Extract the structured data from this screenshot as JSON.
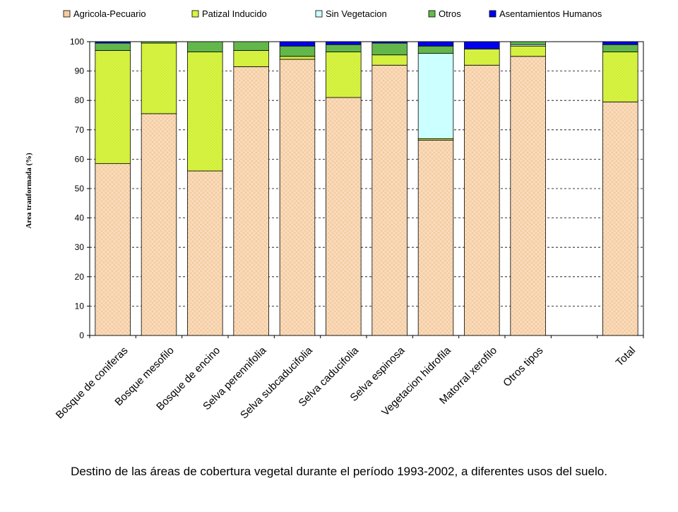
{
  "chart_data": {
    "type": "bar",
    "stacked": true,
    "title": "",
    "xlabel": "",
    "ylabel": "Area tranformada (%)",
    "ylim": [
      0,
      100
    ],
    "yticks": [
      0,
      10,
      20,
      30,
      40,
      50,
      60,
      70,
      80,
      90,
      100
    ],
    "grid": "horizontal dashed",
    "legend_position": "top",
    "categories": [
      "Bosque de coniferas",
      "Bosque mesofilo",
      "Bosque de encino",
      "Selva perennifolia",
      "Selva subcaducifolia",
      "Selva caducifolia",
      "Selva espinosa",
      "Vegetacion hidrofila",
      "Matorral xerofilo",
      "Otros tipos",
      "",
      "Total"
    ],
    "series": [
      {
        "name": "Agricola-Pecuario",
        "color": "#f5cda3",
        "values": [
          58.5,
          75.5,
          56,
          91.5,
          94,
          81,
          92,
          66.5,
          92,
          95,
          0,
          79.5
        ]
      },
      {
        "name": "Patizal Inducido",
        "color": "#d9f542",
        "values": [
          38.5,
          24,
          40.5,
          5.5,
          1,
          15.5,
          3.5,
          0.5,
          5.5,
          3.5,
          0,
          17
        ]
      },
      {
        "name": "Sin Vegetacion",
        "color": "#ccffff",
        "values": [
          0,
          0,
          0,
          0,
          0,
          0,
          0,
          29,
          0,
          0.5,
          0,
          0
        ]
      },
      {
        "name": "Otros",
        "color": "#66bb4e",
        "values": [
          2.5,
          0.5,
          3.5,
          3,
          3.5,
          2.5,
          4,
          2.5,
          0,
          1,
          0,
          2.5
        ]
      },
      {
        "name": "Asentamientos Humanos",
        "color": "#0000ee",
        "values": [
          0.5,
          0,
          0,
          0,
          1.5,
          1,
          0.5,
          1.5,
          2.5,
          0,
          0,
          1
        ]
      }
    ]
  },
  "caption": "Destino de las áreas de cobertura vegetal durante el período 1993-2002, a diferentes usos del suelo."
}
